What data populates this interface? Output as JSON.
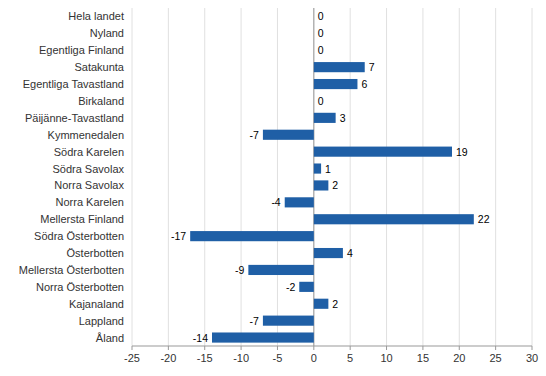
{
  "chart_data": {
    "type": "bar",
    "orientation": "horizontal",
    "categories": [
      "Hela landet",
      "Nyland",
      "Egentliga Finland",
      "Satakunta",
      "Egentliga Tavastland",
      "Birkaland",
      "Päijänne-Tavastland",
      "Kymmenedalen",
      "Södra Karelen",
      "Södra Savolax",
      "Norra Savolax",
      "Norra Karelen",
      "Mellersta Finland",
      "Södra Österbotten",
      "Österbotten",
      "Mellersta Österbotten",
      "Norra Österbotten",
      "Kajanaland",
      "Lappland",
      "Åland"
    ],
    "values": [
      0,
      0,
      0,
      7,
      6,
      0,
      3,
      -7,
      19,
      1,
      2,
      -4,
      22,
      -17,
      4,
      -9,
      -2,
      2,
      -7,
      -14
    ],
    "color": "#1f5fa6",
    "xlim": [
      -25,
      30
    ],
    "xticks": [
      -25,
      -20,
      -15,
      -10,
      -5,
      0,
      5,
      10,
      15,
      20,
      25,
      30
    ],
    "grid": true,
    "data_labels": true
  }
}
